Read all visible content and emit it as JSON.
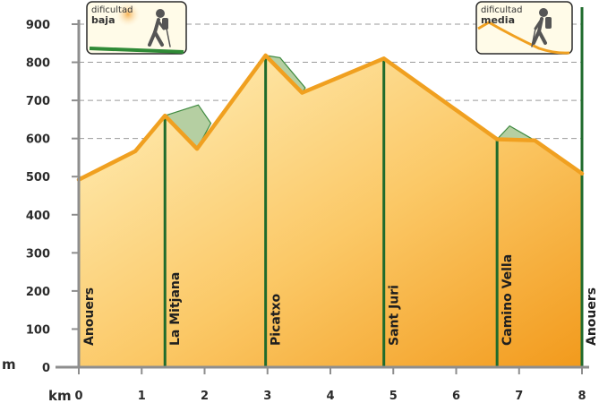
{
  "chart_data": {
    "type": "area",
    "units": {
      "x": "km",
      "y": "m"
    },
    "xlim": [
      0,
      8
    ],
    "ylim": [
      0,
      900
    ],
    "x_ticks": [
      0,
      1,
      2,
      3,
      4,
      5,
      6,
      7,
      8
    ],
    "y_ticks": [
      0,
      100,
      200,
      300,
      400,
      500,
      600,
      700,
      800,
      900
    ],
    "grid": "horizontal-dashed",
    "profile": [
      {
        "x": 0.0,
        "y": 492
      },
      {
        "x": 0.9,
        "y": 567
      },
      {
        "x": 1.37,
        "y": 660
      },
      {
        "x": 1.88,
        "y": 573
      },
      {
        "x": 2.97,
        "y": 818
      },
      {
        "x": 3.55,
        "y": 720
      },
      {
        "x": 4.85,
        "y": 810
      },
      {
        "x": 6.65,
        "y": 598
      },
      {
        "x": 7.25,
        "y": 595
      },
      {
        "x": 8.0,
        "y": 508
      }
    ],
    "alt_sections": [
      [
        {
          "x": 1.37,
          "y": 660
        },
        {
          "x": 1.9,
          "y": 688
        },
        {
          "x": 2.1,
          "y": 640
        },
        {
          "x": 1.88,
          "y": 573
        }
      ],
      [
        {
          "x": 2.97,
          "y": 818
        },
        {
          "x": 3.2,
          "y": 812
        },
        {
          "x": 3.6,
          "y": 733
        },
        {
          "x": 3.55,
          "y": 720
        }
      ],
      [
        {
          "x": 6.65,
          "y": 598
        },
        {
          "x": 6.85,
          "y": 633
        },
        {
          "x": 7.25,
          "y": 595
        }
      ]
    ],
    "waypoints": [
      {
        "x": 0.0,
        "label": "Anouers"
      },
      {
        "x": 1.37,
        "label": "La Mitjana"
      },
      {
        "x": 2.97,
        "label": "Picatxo"
      },
      {
        "x": 4.85,
        "label": "Sant Juri"
      },
      {
        "x": 6.65,
        "label": "Camino Vella"
      },
      {
        "x": 8.0,
        "label": "Anouers"
      }
    ],
    "legend": [
      {
        "line1": "dificultad",
        "line2": "baja"
      },
      {
        "line1": "dificultad",
        "line2": "media"
      }
    ],
    "colors": {
      "profile_line": "#f0a020",
      "fill_top": "#fff2c0",
      "fill_bottom": "#f29a1c",
      "alt_fill": "#b5cfa2",
      "alt_stroke": "#3f8a40",
      "waypoint_line": "#1f6b2c",
      "axis": "#8e8e8e",
      "grid": "#9a9a9a"
    }
  }
}
